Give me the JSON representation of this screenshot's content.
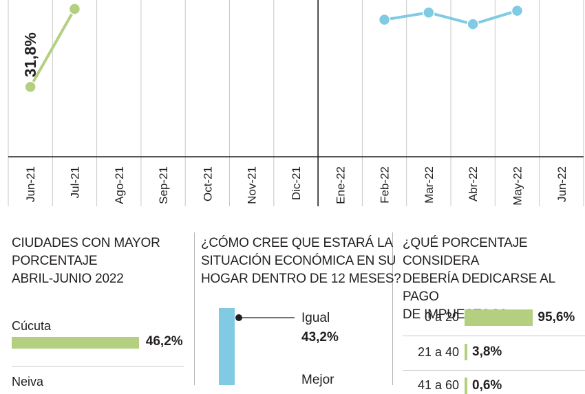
{
  "chart_data": [
    {
      "type": "line",
      "categories": [
        "Jun-21",
        "Jul-21",
        "Ago-21",
        "Sep-21",
        "Oct-21",
        "Nov-21",
        "Dic-21",
        "Ene-22",
        "Feb-22",
        "Mar-22",
        "Abr-22",
        "May-22",
        "Jun-22"
      ],
      "series": [
        {
          "values": [
            31.8,
            40.5,
            null,
            null,
            null,
            null,
            null,
            null,
            null,
            null,
            null,
            null,
            null
          ],
          "color": "#b5cf81"
        },
        {
          "values": [
            null,
            null,
            null,
            null,
            null,
            null,
            null,
            null,
            39.3,
            40.1,
            38.8,
            40.3,
            null
          ],
          "color": "#80cbe3"
        }
      ],
      "point_labels": [
        {
          "index": 0,
          "text": "31,8%"
        }
      ],
      "ylim": [
        24,
        41.5
      ],
      "grid": "vertical",
      "divider_after": "Dic-21"
    },
    {
      "type": "bar",
      "title_lines": [
        "CIUDADES CON MAYOR",
        "PORCENTAJE",
        "ABRIL-JUNIO 2022"
      ],
      "categories": [
        "Cúcuta",
        "Neiva"
      ],
      "values": [
        46.2,
        null
      ],
      "value_labels": [
        "46,2%",
        ""
      ],
      "color": "#b5cf81"
    },
    {
      "type": "bar",
      "title_lines": [
        "¿CÓMO CREE QUE ESTARÁ LA",
        "SITUACIÓN ECONÓMICA EN SU",
        "HOGAR DENTRO DE 12 MESES?"
      ],
      "categories": [
        "Igual",
        "Mejor"
      ],
      "values": [
        43.2,
        null
      ],
      "value_labels": [
        "43,2%",
        ""
      ],
      "color": "#80cbe3"
    },
    {
      "type": "bar",
      "title_lines": [
        "¿QUÉ PORCENTAJE CONSIDERA",
        "DEBERÍA DEDICARSE AL PAGO",
        "DE IMPUESTOS?"
      ],
      "categories": [
        "0 a 20",
        "21 a 40",
        "41 a 60"
      ],
      "values": [
        95.6,
        3.8,
        0.6
      ],
      "value_labels": [
        "95,6%",
        "3,8%",
        "0,6%"
      ],
      "color": "#b5cf81"
    }
  ]
}
